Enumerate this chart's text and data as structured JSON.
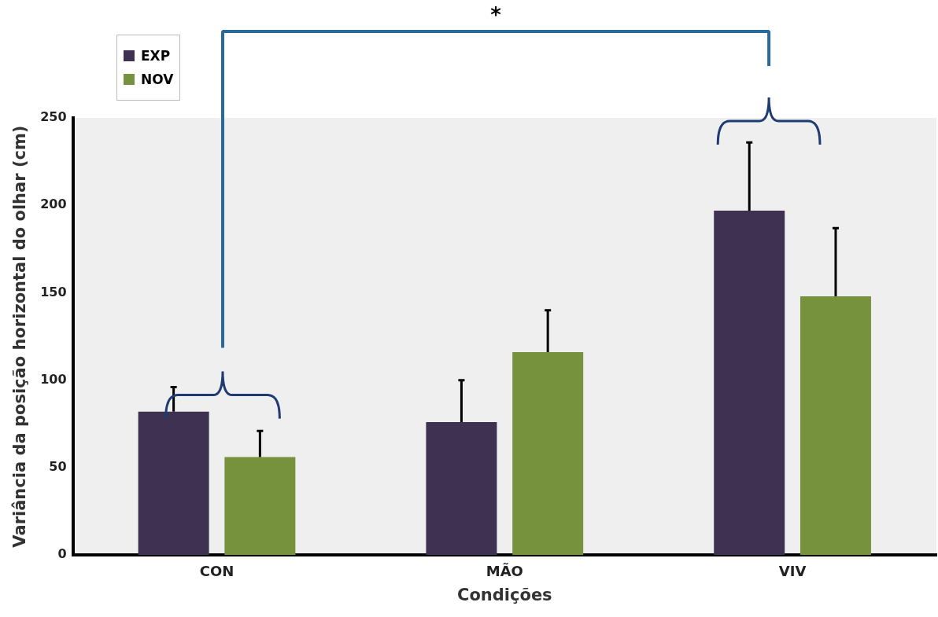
{
  "chart_data": {
    "type": "bar",
    "categories": [
      "CON",
      "MÃO",
      "VIV"
    ],
    "series": [
      {
        "name": "EXP",
        "color": "#3f3151",
        "values": [
          82,
          76,
          197
        ],
        "errors": [
          [
            82,
            96
          ],
          [
            76,
            100
          ],
          [
            197,
            236
          ]
        ]
      },
      {
        "name": "NOV",
        "color": "#76923c",
        "values": [
          56,
          116,
          148
        ],
        "errors": [
          [
            56,
            71
          ],
          [
            116,
            140
          ],
          [
            148,
            187
          ]
        ]
      }
    ],
    "xlabel": "Condições",
    "ylabel": "Variância da posição horizontal do olhar (cm)",
    "ylim": [
      0,
      250
    ],
    "yticks": [
      0,
      50,
      100,
      150,
      200,
      250
    ],
    "grid": false,
    "legend": "top left",
    "annotations": [
      "*"
    ]
  }
}
